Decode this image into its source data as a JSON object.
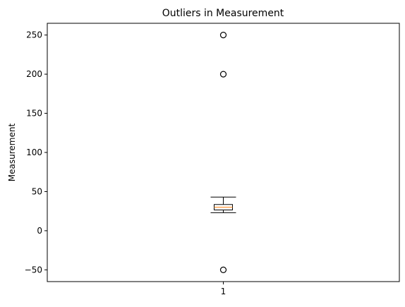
{
  "chart_data": {
    "type": "boxplot",
    "title": "Outliers in Measurement",
    "xlabel": "",
    "ylabel": "Measurement",
    "ylim": [
      -65,
      265
    ],
    "y_ticks": [
      -50,
      0,
      50,
      100,
      150,
      200,
      250
    ],
    "categories": [
      "1"
    ],
    "boxes": [
      {
        "category": "1",
        "whisker_low": 23,
        "q1": 26.5,
        "median": 30,
        "q3": 33.5,
        "whisker_high": 43,
        "outliers": [
          250,
          200,
          -50
        ]
      }
    ],
    "grid": false,
    "colors": {
      "box": "#000000",
      "median": "#ff7f0e",
      "outlier": "#000000"
    }
  }
}
